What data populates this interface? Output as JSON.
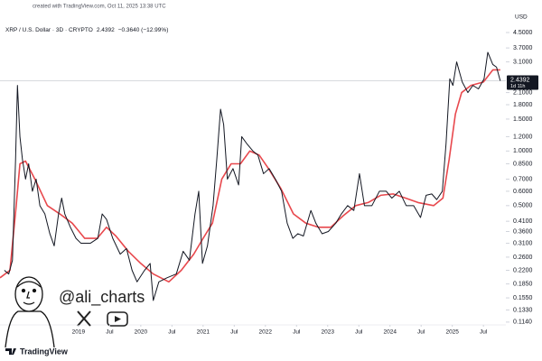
{
  "header": {
    "created": "created with TradingView.com, Oct 11, 2025 13:38 UTC",
    "symbol": "XRP / U.S. Dollar · 3D · CRYPTO",
    "change": "−0.3640 (−12.99%)",
    "currency": "USD"
  },
  "overlay": {
    "watermark": "@ali_charts",
    "brand": "TradingView"
  },
  "chart_data": {
    "type": "line",
    "log_scale": true,
    "grid": false,
    "last_price": 2.4392,
    "countdown": "1d 11h",
    "xlim": [
      2017.74,
      2025.86
    ],
    "ylim": [
      0.11,
      6.8
    ],
    "xticks": [
      {
        "value": 2019,
        "label": "2019"
      },
      {
        "value": 2019.5,
        "label": "Jul"
      },
      {
        "value": 2020,
        "label": "2020"
      },
      {
        "value": 2020.5,
        "label": "Jul"
      },
      {
        "value": 2021,
        "label": "2021"
      },
      {
        "value": 2021.5,
        "label": "Jul"
      },
      {
        "value": 2022,
        "label": "2022"
      },
      {
        "value": 2022.5,
        "label": "Jul"
      },
      {
        "value": 2023,
        "label": "2023"
      },
      {
        "value": 2023.5,
        "label": "Jul"
      },
      {
        "value": 2024,
        "label": "2024"
      },
      {
        "value": 2024.5,
        "label": "Jul"
      },
      {
        "value": 2025,
        "label": "2025"
      },
      {
        "value": 2025.5,
        "label": "Jul"
      }
    ],
    "yticks": [
      {
        "value": 4.5,
        "label": "4.5000"
      },
      {
        "value": 3.7,
        "label": "3.7000"
      },
      {
        "value": 3.1,
        "label": "3.1000"
      },
      {
        "value": 2.1,
        "label": "2.1000"
      },
      {
        "value": 1.8,
        "label": "1.8000"
      },
      {
        "value": 1.5,
        "label": "1.5000"
      },
      {
        "value": 1.2,
        "label": "1.2000"
      },
      {
        "value": 1.0,
        "label": "1.0000"
      },
      {
        "value": 0.85,
        "label": "0.8500"
      },
      {
        "value": 0.7,
        "label": "0.7000"
      },
      {
        "value": 0.6,
        "label": "0.6000"
      },
      {
        "value": 0.5,
        "label": "0.5000"
      },
      {
        "value": 0.41,
        "label": "0.4100"
      },
      {
        "value": 0.36,
        "label": "0.3600"
      },
      {
        "value": 0.31,
        "label": "0.3100"
      },
      {
        "value": 0.26,
        "label": "0.2600"
      },
      {
        "value": 0.22,
        "label": "0.2200"
      },
      {
        "value": 0.185,
        "label": "0.1850"
      },
      {
        "value": 0.155,
        "label": "0.1550"
      },
      {
        "value": 0.133,
        "label": "0.1330"
      },
      {
        "value": 0.114,
        "label": "0.1140"
      }
    ],
    "series": [
      {
        "name": "XRP",
        "color": "#131722",
        "x": [
          2017.81,
          2017.88,
          2017.94,
          2017.99,
          2018.02,
          2018.06,
          2018.1,
          2018.15,
          2018.2,
          2018.26,
          2018.32,
          2018.38,
          2018.46,
          2018.54,
          2018.61,
          2018.68,
          2018.73,
          2018.78,
          2018.87,
          2018.96,
          2019.04,
          2019.19,
          2019.31,
          2019.38,
          2019.45,
          2019.55,
          2019.67,
          2019.77,
          2019.86,
          2019.94,
          2020.06,
          2020.15,
          2020.2,
          2020.29,
          2020.42,
          2020.57,
          2020.68,
          2020.78,
          2020.87,
          2020.93,
          2020.99,
          2021.07,
          2021.16,
          2021.22,
          2021.28,
          2021.33,
          2021.39,
          2021.48,
          2021.57,
          2021.62,
          2021.7,
          2021.8,
          2021.88,
          2021.97,
          2022.06,
          2022.16,
          2022.26,
          2022.35,
          2022.44,
          2022.52,
          2022.61,
          2022.73,
          2022.81,
          2022.91,
          2023.01,
          2023.13,
          2023.22,
          2023.32,
          2023.42,
          2023.51,
          2023.59,
          2023.71,
          2023.83,
          2023.94,
          2024.03,
          2024.15,
          2024.26,
          2024.38,
          2024.49,
          2024.58,
          2024.67,
          2024.75,
          2024.84,
          2024.9,
          2024.96,
          2025.01,
          2025.07,
          2025.16,
          2025.25,
          2025.33,
          2025.42,
          2025.51,
          2025.57,
          2025.65,
          2025.71,
          2025.77
        ],
        "values": [
          0.22,
          0.21,
          0.25,
          0.9,
          2.3,
          1.2,
          0.9,
          0.7,
          0.85,
          0.6,
          0.7,
          0.5,
          0.45,
          0.35,
          0.3,
          0.45,
          0.55,
          0.45,
          0.38,
          0.33,
          0.31,
          0.31,
          0.33,
          0.45,
          0.42,
          0.33,
          0.27,
          0.29,
          0.22,
          0.19,
          0.22,
          0.24,
          0.15,
          0.19,
          0.2,
          0.21,
          0.28,
          0.25,
          0.45,
          0.6,
          0.24,
          0.3,
          0.5,
          0.9,
          1.7,
          1.4,
          0.7,
          0.8,
          0.65,
          1.2,
          1.1,
          1.0,
          0.95,
          0.75,
          0.8,
          0.7,
          0.6,
          0.4,
          0.33,
          0.35,
          0.34,
          0.47,
          0.4,
          0.35,
          0.36,
          0.4,
          0.45,
          0.5,
          0.47,
          0.75,
          0.5,
          0.5,
          0.6,
          0.6,
          0.55,
          0.6,
          0.5,
          0.5,
          0.43,
          0.57,
          0.58,
          0.54,
          0.6,
          1.1,
          2.5,
          2.3,
          3.1,
          2.4,
          2.1,
          2.3,
          2.2,
          2.5,
          3.5,
          3.0,
          2.9,
          2.4392
        ]
      },
      {
        "name": "Moving average",
        "color": "#e8484d",
        "x": [
          2017.74,
          2017.9,
          2018.0,
          2018.06,
          2018.15,
          2018.3,
          2018.5,
          2018.7,
          2018.9,
          2019.1,
          2019.3,
          2019.45,
          2019.6,
          2019.8,
          2020.0,
          2020.2,
          2020.45,
          2020.65,
          2020.85,
          2021.0,
          2021.15,
          2021.3,
          2021.45,
          2021.6,
          2021.75,
          2021.9,
          2022.05,
          2022.25,
          2022.45,
          2022.65,
          2022.85,
          2023.05,
          2023.25,
          2023.45,
          2023.65,
          2023.85,
          2024.05,
          2024.25,
          2024.45,
          2024.7,
          2024.85,
          2024.95,
          2025.05,
          2025.15,
          2025.3,
          2025.5,
          2025.65,
          2025.77
        ],
        "values": [
          0.2,
          0.22,
          0.5,
          0.85,
          0.88,
          0.7,
          0.5,
          0.45,
          0.4,
          0.33,
          0.33,
          0.38,
          0.34,
          0.28,
          0.24,
          0.21,
          0.19,
          0.22,
          0.27,
          0.33,
          0.4,
          0.7,
          0.85,
          0.85,
          1.0,
          0.95,
          0.8,
          0.62,
          0.45,
          0.4,
          0.38,
          0.38,
          0.44,
          0.5,
          0.52,
          0.57,
          0.58,
          0.55,
          0.52,
          0.5,
          0.55,
          0.9,
          1.6,
          2.1,
          2.3,
          2.4,
          2.8,
          2.8
        ]
      }
    ]
  }
}
